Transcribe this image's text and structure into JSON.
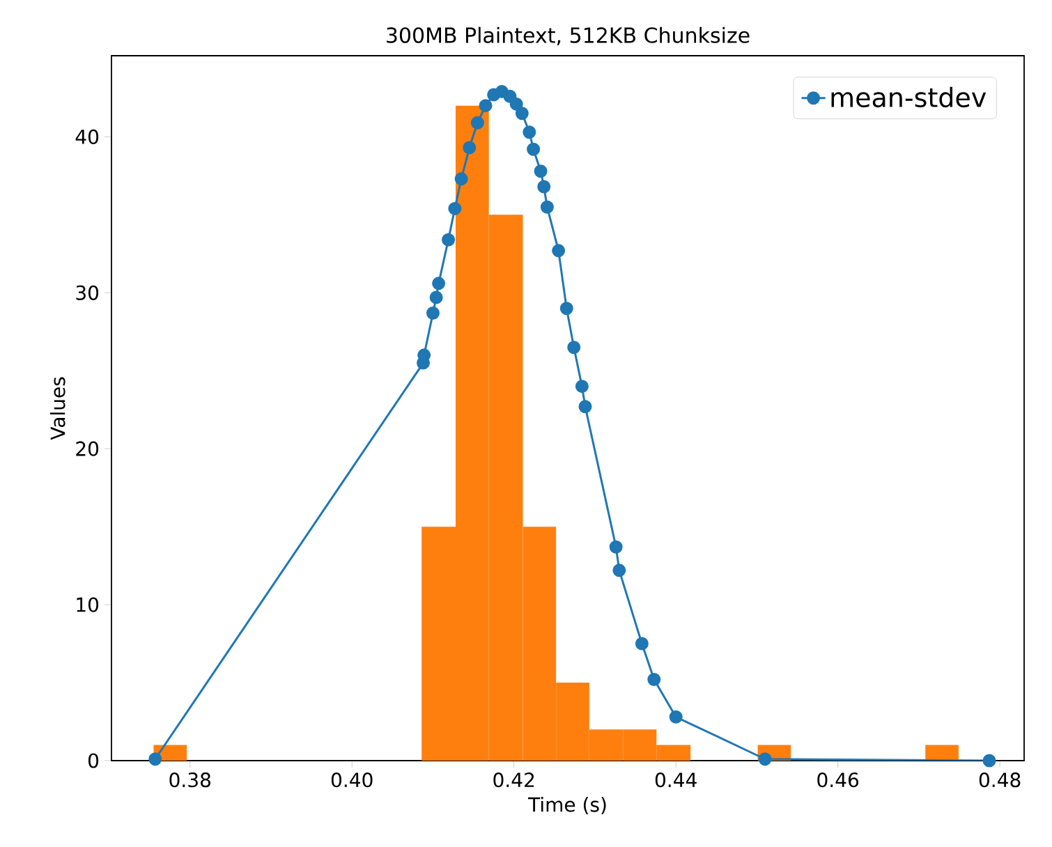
{
  "chart_data": {
    "type": "histogram",
    "title": "300MB Plaintext, 512KB Chunksize",
    "xlabel": "Time (s)",
    "ylabel": "Values",
    "xlim": [
      0.3703,
      0.483
    ],
    "ylim": [
      0,
      45.2
    ],
    "xticks": [
      0.38,
      {
        "value": 0.4,
        "label": "0.40"
      },
      0.42,
      0.44,
      0.46,
      0.48
    ],
    "yticks": [
      0,
      10,
      20,
      30,
      40
    ],
    "legend": "top right",
    "series": [
      {
        "color": "#ff7f0e",
        "bins": [
          0.3755,
          0.3796,
          0.4086,
          0.4128,
          0.4169,
          0.4211,
          0.4252,
          0.4293,
          0.4335,
          0.4376,
          0.4418,
          0.4501,
          0.4542,
          0.4708,
          0.4749
        ],
        "values": [
          1,
          0,
          15,
          42,
          35,
          15,
          5,
          2,
          2,
          1,
          0,
          1,
          0,
          1
        ]
      },
      {
        "type": "line",
        "name": "mean-stdev",
        "color": "#1f77b4",
        "marker": "circle",
        "line_style": "solid",
        "x": [
          0.3757,
          0.4088,
          0.4089,
          0.41,
          0.4104,
          0.4107,
          0.4119,
          0.4127,
          0.4135,
          0.4145,
          0.4155,
          0.4165,
          0.4175,
          0.4185,
          0.4195,
          0.4203,
          0.421,
          0.4219,
          0.4224,
          0.4233,
          0.4237,
          0.4241,
          0.4255,
          0.4265,
          0.4274,
          0.4284,
          0.4288,
          0.4326,
          0.433,
          0.4358,
          0.4373,
          0.44,
          0.451,
          0.4787
        ],
        "values": [
          0.1,
          25.5,
          26,
          28.7,
          29.7,
          30.6,
          33.4,
          35.4,
          37.3,
          39.3,
          40.9,
          42.0,
          42.7,
          42.9,
          42.6,
          42.1,
          41.5,
          40.3,
          39.2,
          37.8,
          36.8,
          35.5,
          32.7,
          29.0,
          26.5,
          24.0,
          22.7,
          13.7,
          12.2,
          7.5,
          5.2,
          2.8,
          0.1,
          0.0
        ]
      }
    ]
  }
}
